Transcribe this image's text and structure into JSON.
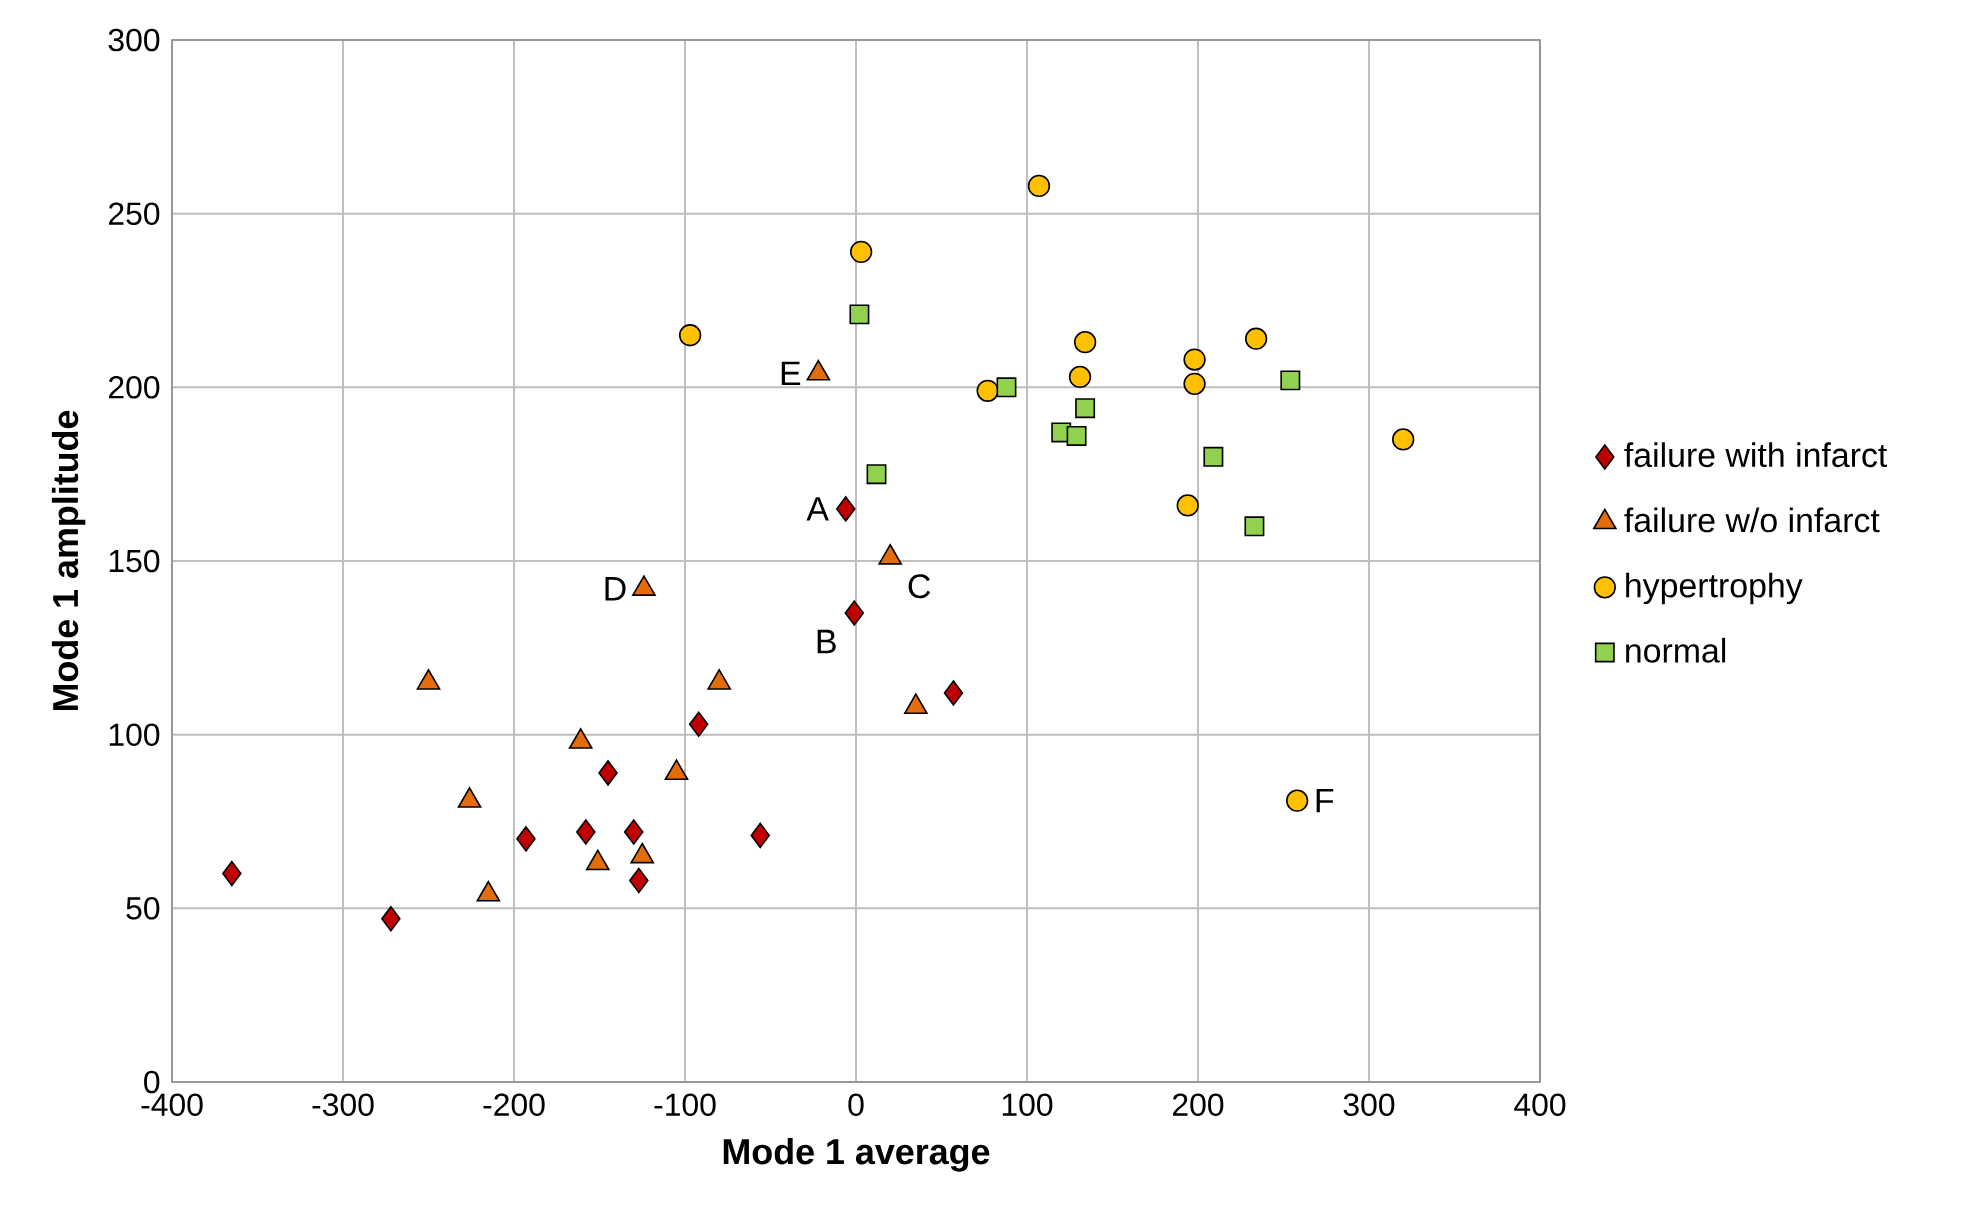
{
  "chart_data": {
    "type": "scatter",
    "xlabel": "Mode 1 average",
    "ylabel": "Mode 1 amplitude",
    "xlim": [
      -400,
      400
    ],
    "ylim": [
      0,
      300
    ],
    "xticks": [
      -400,
      -300,
      -200,
      -100,
      0,
      100,
      200,
      300,
      400
    ],
    "yticks": [
      0,
      50,
      100,
      150,
      200,
      250,
      300
    ],
    "grid": true,
    "legend": "right",
    "series": [
      {
        "name": "failure with infarct",
        "color": "#c00000",
        "marker": "diamond",
        "x": [
          -365,
          -272,
          -193,
          -158,
          -145,
          -130,
          -127,
          -92,
          -56,
          -6,
          -1,
          57
        ],
        "values": [
          60,
          47,
          70,
          72,
          89,
          72,
          58,
          103,
          71,
          165,
          135,
          112
        ]
      },
      {
        "name": "failure w/o infarct",
        "color": "#e46c0a",
        "marker": "triangle",
        "x": [
          -250,
          -226,
          -215,
          -161,
          -151,
          -125,
          -124,
          -105,
          -80,
          -22,
          20,
          35
        ],
        "values": [
          115,
          81,
          54,
          98,
          63,
          65,
          142,
          89,
          115,
          204,
          151,
          108
        ]
      },
      {
        "name": "hypertrophy",
        "color": "#ffc000",
        "marker": "circle",
        "x": [
          -97,
          3,
          107,
          77,
          134,
          131,
          198,
          198,
          234,
          194,
          320,
          258
        ],
        "values": [
          215,
          239,
          258,
          199,
          213,
          203,
          208,
          201,
          214,
          166,
          185,
          81
        ]
      },
      {
        "name": "normal",
        "color": "#92d050",
        "marker": "square",
        "x": [
          2,
          12,
          88,
          120,
          129,
          134,
          209,
          233,
          254
        ],
        "values": [
          221,
          175,
          200,
          187,
          186,
          194,
          180,
          160,
          202
        ]
      }
    ],
    "annotations": [
      {
        "text": "A",
        "x": -6,
        "y": 165
      },
      {
        "text": "B",
        "x": -1,
        "y": 135
      },
      {
        "text": "C",
        "x": 20,
        "y": 151
      },
      {
        "text": "D",
        "x": -124,
        "y": 142
      },
      {
        "text": "E",
        "x": -22,
        "y": 204
      },
      {
        "text": "F",
        "x": 258,
        "y": 81
      }
    ]
  }
}
